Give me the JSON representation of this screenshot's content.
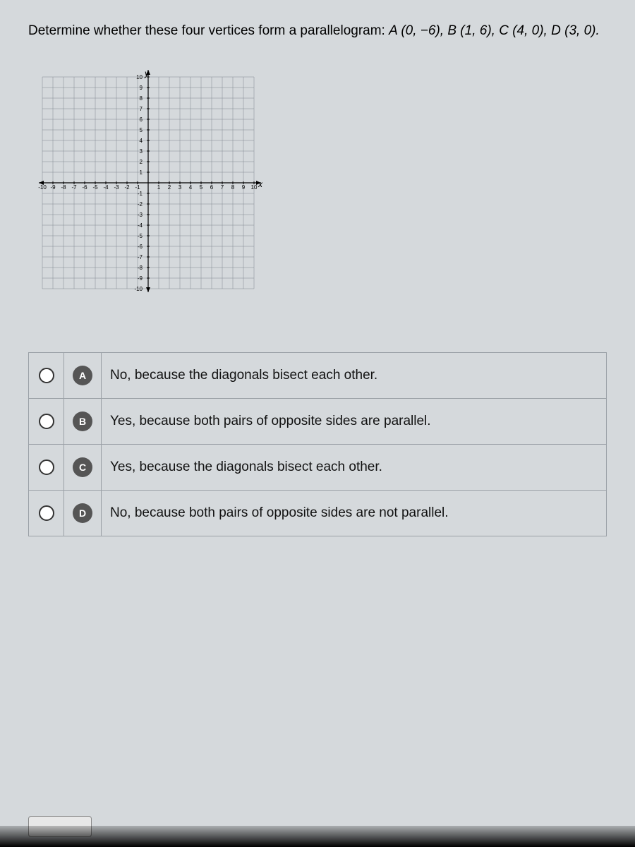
{
  "question": {
    "prefix": "Determine whether these four vertices form a parallelogram: ",
    "points_text": "A (0, −6), B (1, 6), C (4, 0), D (3, 0)."
  },
  "graph": {
    "size": 360,
    "range": [
      -10,
      10
    ],
    "tick_step": 1,
    "grid_color": "#808890",
    "axis_color": "#000000",
    "background_color": "#d5d9dc",
    "x_label": "x",
    "y_label": "y",
    "tick_labels": [
      "-10",
      "-9",
      "-8",
      "-7",
      "-6",
      "-5",
      "-4",
      "-3",
      "-2",
      "-1",
      "",
      "1",
      "2",
      "3",
      "4",
      "5",
      "6",
      "7",
      "8",
      "9",
      "10"
    ],
    "tick_labels_y_pos": [
      "10",
      "9",
      "8",
      "7",
      "6",
      "5",
      "4",
      "3",
      "2",
      "1",
      "",
      "-1",
      "-2",
      "-3",
      "-4",
      "-5",
      "-6",
      "-7",
      "-8",
      "-9",
      "-10"
    ]
  },
  "options": [
    {
      "letter": "A",
      "text": "No, because the diagonals bisect each other."
    },
    {
      "letter": "B",
      "text": "Yes, because both pairs of opposite sides are parallel."
    },
    {
      "letter": "C",
      "text": "Yes, because the diagonals bisect each other."
    },
    {
      "letter": "D",
      "text": "No, because both pairs of opposite sides are not parallel."
    }
  ],
  "letter_badge": {
    "bg": "#555555",
    "fg": "#ffffff"
  }
}
